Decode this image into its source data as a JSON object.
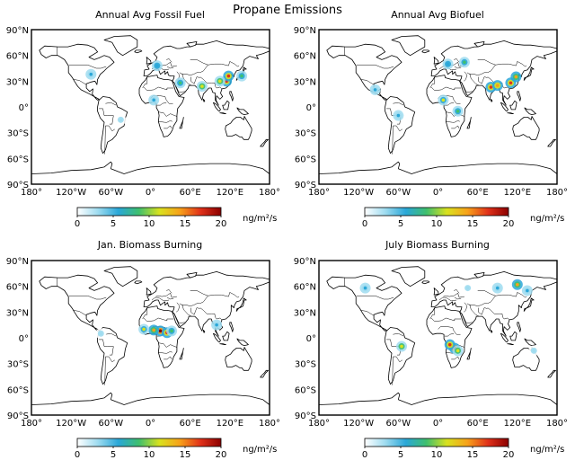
{
  "figure_title": "Propane Emissions",
  "colors": {
    "frame": "#000000",
    "coast": "#000000",
    "colorbar_stops": [
      "#ffffff",
      "#9fdcf0",
      "#2aa7d8",
      "#3fbf6e",
      "#d9e21f",
      "#f7a11a",
      "#e0311a",
      "#8b0000"
    ]
  },
  "lon_labels": [
    "180°",
    "120°W",
    "60°W",
    "0°",
    "60°E",
    "120°E",
    "180°"
  ],
  "lat_labels": [
    "90°N",
    "60°N",
    "30°N",
    "0°",
    "30°S",
    "60°S",
    "90°S"
  ],
  "colorbar": {
    "ticks": [
      "0",
      "5",
      "10",
      "15",
      "20"
    ],
    "units": "ng/m²/s",
    "range": [
      0,
      20
    ]
  },
  "panels": [
    {
      "title": "Annual Avg Fossil Fuel",
      "hotspots": [
        {
          "lon": 115,
          "lat": 30,
          "level": 18
        },
        {
          "lon": 118,
          "lat": 36,
          "level": 16
        },
        {
          "lon": 105,
          "lat": 30,
          "level": 12
        },
        {
          "lon": 78,
          "lat": 24,
          "level": 12
        },
        {
          "lon": 10,
          "lat": 48,
          "level": 7
        },
        {
          "lon": -90,
          "lat": 38,
          "level": 6
        },
        {
          "lon": 45,
          "lat": 28,
          "level": 8
        },
        {
          "lon": 5,
          "lat": 8,
          "level": 6
        },
        {
          "lon": -45,
          "lat": -15,
          "level": 4
        },
        {
          "lon": 138,
          "lat": 36,
          "level": 8
        }
      ]
    },
    {
      "title": "Annual Avg Biofuel",
      "hotspots": [
        {
          "lon": 80,
          "lat": 23,
          "level": 18
        },
        {
          "lon": 110,
          "lat": 28,
          "level": 18
        },
        {
          "lon": 118,
          "lat": 35,
          "level": 14
        },
        {
          "lon": 90,
          "lat": 25,
          "level": 15
        },
        {
          "lon": 8,
          "lat": 8,
          "level": 10
        },
        {
          "lon": 30,
          "lat": -5,
          "level": 9
        },
        {
          "lon": 40,
          "lat": 52,
          "level": 8
        },
        {
          "lon": 15,
          "lat": 50,
          "level": 7
        },
        {
          "lon": -60,
          "lat": -10,
          "level": 6
        },
        {
          "lon": -95,
          "lat": 20,
          "level": 5
        }
      ]
    },
    {
      "title": "Jan. Biomass Burning",
      "hotspots": [
        {
          "lon": 15,
          "lat": 8,
          "level": 20
        },
        {
          "lon": 25,
          "lat": 6,
          "level": 18
        },
        {
          "lon": 5,
          "lat": 9,
          "level": 14
        },
        {
          "lon": -10,
          "lat": 10,
          "level": 10
        },
        {
          "lon": 32,
          "lat": 8,
          "level": 9
        },
        {
          "lon": 100,
          "lat": 15,
          "level": 5
        },
        {
          "lon": -75,
          "lat": 5,
          "level": 4
        }
      ]
    },
    {
      "title": "July Biomass Burning",
      "hotspots": [
        {
          "lon": 25,
          "lat": -12,
          "level": 20
        },
        {
          "lon": 18,
          "lat": -8,
          "level": 17
        },
        {
          "lon": 30,
          "lat": -15,
          "level": 12
        },
        {
          "lon": -55,
          "lat": -10,
          "level": 12
        },
        {
          "lon": 120,
          "lat": 62,
          "level": 14
        },
        {
          "lon": 90,
          "lat": 58,
          "level": 6
        },
        {
          "lon": -110,
          "lat": 58,
          "level": 6
        },
        {
          "lon": 135,
          "lat": 55,
          "level": 6
        },
        {
          "lon": 45,
          "lat": 58,
          "level": 4
        },
        {
          "lon": 145,
          "lat": -15,
          "level": 4
        }
      ]
    }
  ]
}
